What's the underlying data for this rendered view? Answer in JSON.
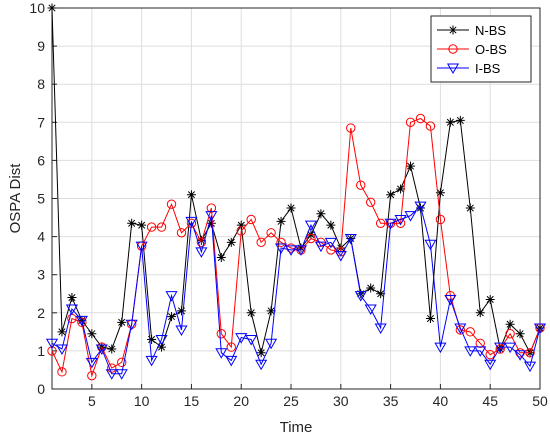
{
  "chart_data": {
    "type": "line",
    "xlabel": "Time",
    "ylabel": "OSPA Dist",
    "xlim": [
      1,
      50
    ],
    "ylim": [
      0,
      10
    ],
    "xticks": [
      5,
      10,
      15,
      20,
      25,
      30,
      35,
      40,
      45,
      50
    ],
    "yticks": [
      0,
      1,
      2,
      3,
      4,
      5,
      6,
      7,
      8,
      9,
      10
    ],
    "grid": true,
    "legend_position": "top-right",
    "x": [
      1,
      2,
      3,
      4,
      5,
      6,
      7,
      8,
      9,
      10,
      11,
      12,
      13,
      14,
      15,
      16,
      17,
      18,
      19,
      20,
      21,
      22,
      23,
      24,
      25,
      26,
      27,
      28,
      29,
      30,
      31,
      32,
      33,
      34,
      35,
      36,
      37,
      38,
      39,
      40,
      41,
      42,
      43,
      44,
      45,
      46,
      47,
      48,
      49,
      50
    ],
    "series": [
      {
        "name": "N-BS",
        "color": "#000000",
        "marker": "star",
        "values": [
          10,
          1.5,
          2.4,
          1.8,
          1.45,
          1.1,
          1.05,
          1.75,
          4.35,
          4.3,
          1.3,
          1.1,
          1.9,
          2.05,
          5.1,
          3.9,
          4.35,
          3.45,
          3.85,
          4.3,
          2.0,
          0.95,
          2.05,
          4.4,
          4.75,
          3.7,
          4.05,
          4.6,
          4.3,
          3.7,
          3.95,
          2.5,
          2.65,
          2.5,
          5.1,
          5.25,
          5.85,
          4.75,
          1.85,
          5.15,
          7.0,
          7.05,
          4.75,
          2.0,
          2.35,
          1.05,
          1.7,
          1.45,
          0.95,
          1.6
        ]
      },
      {
        "name": "O-BS",
        "color": "#ff0000",
        "marker": "circle",
        "values": [
          1.0,
          0.45,
          1.85,
          1.75,
          0.35,
          1.1,
          0.55,
          0.7,
          1.7,
          3.75,
          4.25,
          4.25,
          4.85,
          4.1,
          4.35,
          3.85,
          4.75,
          1.45,
          1.1,
          4.15,
          4.45,
          3.85,
          4.1,
          3.85,
          3.7,
          3.65,
          3.95,
          3.85,
          3.65,
          3.6,
          6.85,
          5.35,
          4.9,
          4.35,
          4.35,
          4.35,
          7.0,
          7.1,
          6.9,
          4.45,
          2.45,
          1.55,
          1.5,
          1.2,
          0.9,
          1.05,
          1.45,
          0.95,
          0.95,
          1.6
        ]
      },
      {
        "name": "I-BS",
        "color": "#0000ff",
        "marker": "triangle-down",
        "values": [
          1.2,
          1.05,
          2.1,
          1.8,
          0.7,
          1.05,
          0.4,
          0.4,
          1.7,
          3.75,
          0.75,
          1.3,
          2.45,
          1.55,
          4.4,
          3.6,
          4.55,
          0.95,
          0.75,
          1.35,
          1.3,
          0.65,
          1.2,
          3.7,
          3.65,
          3.65,
          4.3,
          3.75,
          3.85,
          3.5,
          3.95,
          2.45,
          2.1,
          1.6,
          4.35,
          4.45,
          4.55,
          4.8,
          3.8,
          1.1,
          2.35,
          1.6,
          1.0,
          1.0,
          0.65,
          1.1,
          1.1,
          0.9,
          0.6,
          1.6
        ]
      }
    ]
  }
}
